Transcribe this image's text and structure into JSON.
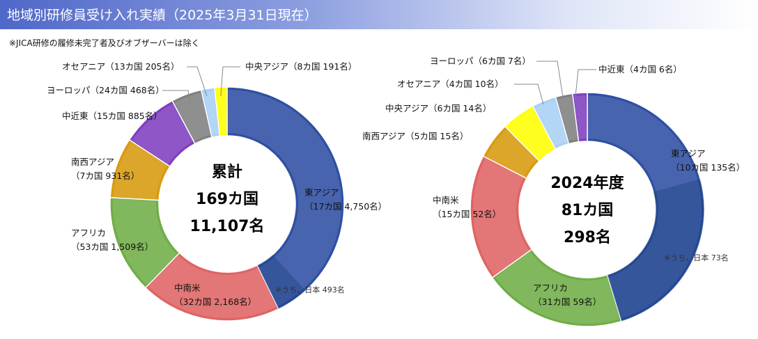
{
  "header": {
    "title": "地域別研修員受け入れ実績（2025年3月31日現在）"
  },
  "note": "※JICA研修の履修未完了者及びオブザーバーは除く",
  "chart_data": [
    {
      "type": "donut",
      "center_lines": [
        "累計",
        "169カ国",
        "11,107名"
      ],
      "slices": [
        {
          "name": "東アジア",
          "countries": 17,
          "value": 4750,
          "color": "#2f4fa3",
          "lines": [
            "東アジア",
            "（17カ国 4,750名）"
          ]
        },
        {
          "name": "中南米",
          "countries": 32,
          "value": 2168,
          "color": "#e06363",
          "lines": [
            "中南米",
            "（32カ国 2,168名）"
          ]
        },
        {
          "name": "アフリカ",
          "countries": 53,
          "value": 1509,
          "color": "#70ad47",
          "lines": [
            "アフリカ",
            "（53カ国 1,509名）"
          ]
        },
        {
          "name": "南西アジア",
          "countries": 7,
          "value": 931,
          "color": "#d89a0e",
          "lines": [
            "南西アジア",
            "（7カ国 931名）"
          ]
        },
        {
          "name": "中近東",
          "countries": 15,
          "value": 885,
          "color": "#7f3fbf",
          "lines": [
            "中近東（15カ国 885名）"
          ]
        },
        {
          "name": "ヨーロッパ",
          "countries": 24,
          "value": 468,
          "color": "#808080",
          "lines": [
            "ヨーロッパ（24カ国 468名）"
          ]
        },
        {
          "name": "オセアニア",
          "countries": 13,
          "value": 205,
          "color": "#a9d0f5",
          "lines": [
            "オセアニア（13カ国 205名）"
          ]
        },
        {
          "name": "中央アジア",
          "countries": 8,
          "value": 191,
          "color": "#ffff00",
          "lines": [
            "中央アジア（8カ国 191名）"
          ]
        }
      ],
      "japan_note": "※うち、日本 493名",
      "japan_value": 493
    },
    {
      "type": "donut",
      "center_lines": [
        "2024年度",
        "81カ国",
        "298名"
      ],
      "slices": [
        {
          "name": "東アジア",
          "countries": 10,
          "value": 135,
          "color": "#2f4fa3",
          "lines": [
            "東アジア",
            "（10カ国 135名）"
          ]
        },
        {
          "name": "アフリカ",
          "countries": 31,
          "value": 59,
          "color": "#70ad47",
          "lines": [
            "アフリカ",
            "（31カ国 59名）"
          ]
        },
        {
          "name": "中南米",
          "countries": 15,
          "value": 52,
          "color": "#e06363",
          "lines": [
            "中南米",
            "（15カ国 52名）"
          ]
        },
        {
          "name": "南西アジア",
          "countries": 5,
          "value": 15,
          "color": "#d89a0e",
          "lines": [
            "南西アジア（5カ国 15名）"
          ]
        },
        {
          "name": "中央アジア",
          "countries": 6,
          "value": 14,
          "color": "#ffff00",
          "lines": [
            "中央アジア（6カ国 14名）"
          ]
        },
        {
          "name": "オセアニア",
          "countries": 4,
          "value": 10,
          "color": "#a9d0f5",
          "lines": [
            "オセアニア（4カ国 10名）"
          ]
        },
        {
          "name": "ヨーロッパ",
          "countries": 6,
          "value": 7,
          "color": "#808080",
          "lines": [
            "ヨーロッパ（6カ国 7名）"
          ]
        },
        {
          "name": "中近東",
          "countries": 4,
          "value": 6,
          "color": "#7f3fbf",
          "lines": [
            "中近東（4カ国 6名）"
          ]
        }
      ],
      "japan_note": "※うち、日本 73名",
      "japan_value": 73
    }
  ]
}
